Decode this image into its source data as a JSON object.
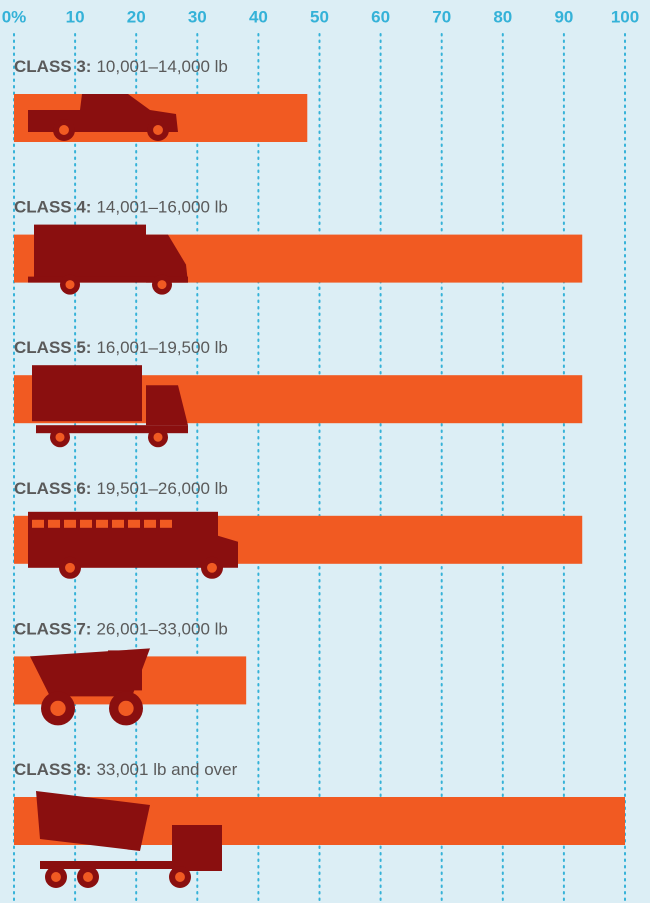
{
  "chart_data": {
    "type": "bar",
    "orientation": "horizontal",
    "categories": [
      "CLASS 3:",
      "CLASS 4:",
      "CLASS 5:",
      "CLASS 6:",
      "CLASS 7:",
      "CLASS 8:"
    ],
    "weight_ranges": [
      "10,001–14,000 lb",
      "14,001–16,000 lb",
      "16,001–19,500 lb",
      "19,501–26,000 lb",
      "26,001–33,000 lb",
      "33,001 lb and over"
    ],
    "values": [
      48,
      93,
      93,
      93,
      38,
      100
    ],
    "color": "#f15a22",
    "xlim": [
      0,
      100
    ],
    "xticks": [
      {
        "value": 0,
        "label": "0%"
      },
      10,
      20,
      30,
      40,
      50,
      60,
      70,
      80,
      90,
      100
    ],
    "grid": true
  }
}
